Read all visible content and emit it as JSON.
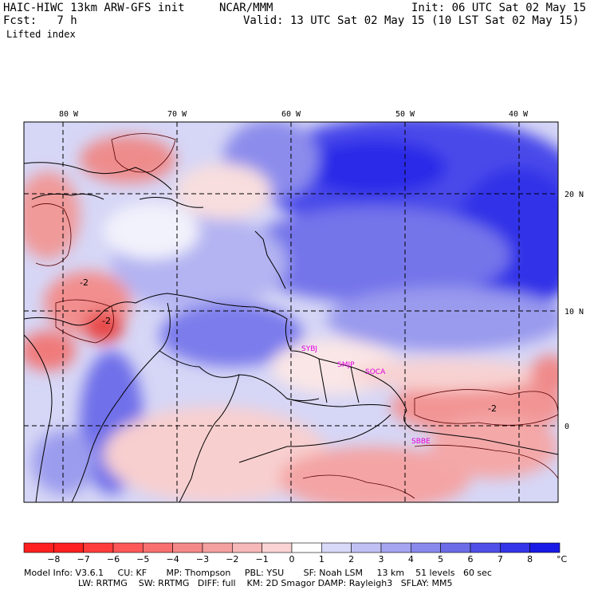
{
  "header": {
    "model": "HAIC-HIWC 13km ARW-GFS init",
    "org": "NCAR/MMM",
    "init": "Init: 06 UTC Sat 02 May 15",
    "fcst": "Fcst:   7 h",
    "valid": "Valid: 13 UTC Sat 02 May 15 (10 LST Sat 02 May 15)",
    "field": "Lifted index"
  },
  "map": {
    "lon_labels": [
      "80 W",
      "70 W",
      "60 W",
      "50 W",
      "40 W"
    ],
    "lat_labels": [
      "20 N",
      "10 N",
      "0"
    ],
    "station_labels": [
      "SYBJ",
      "SMJP",
      "SOCA",
      "SBBE"
    ],
    "contour_labels": [
      "-2",
      "-2",
      "-2"
    ],
    "colors": {
      "negative_max": "#ff1a1a",
      "neutral": "#ffffff",
      "positive_max": "#1a1ae6",
      "coast": "#000000",
      "station": "#e000e0"
    }
  },
  "legend": {
    "ticks": [
      "−8",
      "−7",
      "−6",
      "−5",
      "−4",
      "−3",
      "−2",
      "−1",
      "0",
      "1",
      "2",
      "3",
      "4",
      "5",
      "6",
      "7",
      "8"
    ],
    "unit": "°C",
    "colors": [
      "#ff2020",
      "#ff3c3c",
      "#ff5858",
      "#f87070",
      "#f48888",
      "#f4a0a0",
      "#f6b8b8",
      "#fad4d4",
      "#ffffff",
      "#d8d8f8",
      "#c0c0f4",
      "#a4a4f0",
      "#8888ec",
      "#6c6ce8",
      "#5050e8",
      "#3434e8",
      "#1a1ae6"
    ]
  },
  "model_info": {
    "line1": "Model Info: V3.6.1     CU: KF       MP: Thompson     PBL: YSU       SF: Noah LSM     13 km    51 levels   60 sec",
    "line2": "LW: RRTMG    SW: RRTMG   DIFF: full    KM: 2D Smagor DAMP: Rayleigh3   SFLAY: MM5"
  }
}
